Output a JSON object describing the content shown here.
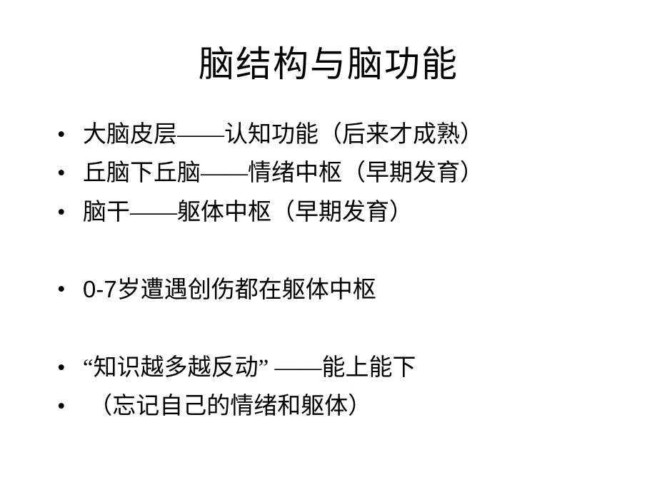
{
  "slide": {
    "title": "脑结构与脑功能",
    "title_fontsize": 50,
    "body_fontsize": 33,
    "background_color": "#ffffff",
    "text_color": "#000000",
    "font_family": "SimSun",
    "bullets": [
      {
        "text": "大脑皮层——认知功能（后来才成熟）"
      },
      {
        "text": "丘脑下丘脑——情绪中枢（早期发育）"
      },
      {
        "text": "脑干——躯体中枢（早期发育）"
      },
      {
        "spacer": true
      },
      {
        "text_prefix": "0-7",
        "text_suffix": "岁遭遇创伤都在躯体中枢"
      },
      {
        "spacer": true
      },
      {
        "text": "“知识越多越反动” ——能上能下"
      },
      {
        "text": " （忘记自己的情绪和躯体）"
      }
    ]
  }
}
